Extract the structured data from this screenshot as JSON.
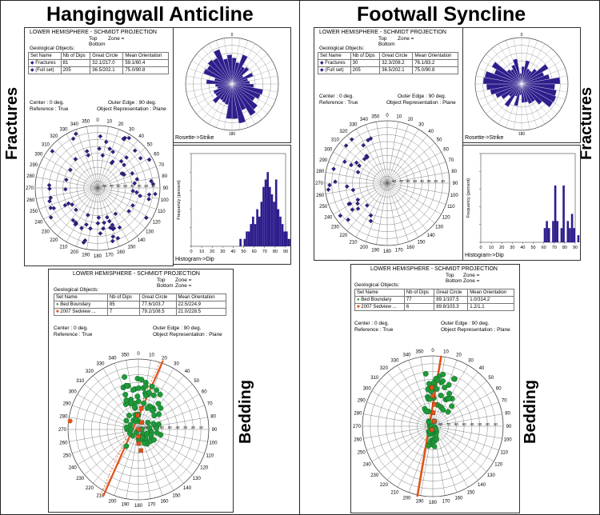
{
  "titles": {
    "left": "Hangingwall Anticline",
    "right": "Footwall Syncline"
  },
  "side_labels": {
    "fractures": "Fractures",
    "bedding": "Bedding"
  },
  "projection_header": {
    "title": "LOWER HEMISPHERE - SCHMIDT PROJECTION",
    "top_label": "Top",
    "bottom_label": "Bottom",
    "dip_label": "Dip",
    "zone_label": "Zone =",
    "geo_objects": "Geological Objects:",
    "col_set": "Set Name",
    "col_nb": "Nb of Dips",
    "col_gc": "Great Circle",
    "col_gc2": "(Dip & Azimuth)",
    "col_mo": "Mean Orientation",
    "col_mo2": "(Dip & Azimuth)",
    "center": "Center",
    "center_val": ": 0 deg.",
    "outer": "Outer Edge",
    "outer_val": ": 90 deg.",
    "reference": "Reference : True",
    "object_rep": "Object Representation : Plane"
  },
  "left_fracture_table": [
    {
      "name": "Fractures",
      "nb": "81",
      "gc": "32.1/217.0",
      "mo": "59.1/60.4"
    },
    {
      "name": "(Full set)",
      "nb": "205",
      "gc": "36.5/202.1",
      "mo": "75.0/90.8"
    }
  ],
  "right_fracture_table": [
    {
      "name": "Fractures",
      "nb": "30",
      "gc": "32.3/208.2",
      "mo": "76.1/83.2"
    },
    {
      "name": "(Full set)",
      "nb": "205",
      "gc": "36.5/202.1",
      "mo": "75.0/90.8"
    }
  ],
  "left_bedding_table": [
    {
      "name": "Bed Boundary",
      "nb": "85",
      "gc": "77.6/103.7",
      "mo": "22.5/224.9"
    },
    {
      "name": "2007 Sedview ...",
      "nb": "7",
      "gc": "79.2/108.5",
      "mo": "21.0/228.5"
    }
  ],
  "right_bedding_table": [
    {
      "name": "Bed Boundary",
      "nb": "77",
      "gc": "89.1/107.5",
      "mo": "1.0/314.2"
    },
    {
      "name": "2007 Sedview ...",
      "nb": "6",
      "gc": "89.8/103.3",
      "mo": "1.2/1.1"
    }
  ],
  "rosette_caption": "Rosette->Strike",
  "histogram_caption": "Histogram->Dip",
  "histogram_xlabel": "Dip (degrees)",
  "histogram_ylabel": "Frequency (percent)",
  "compass_labels": [
    "0",
    "10",
    "20",
    "30",
    "40",
    "50",
    "60",
    "70",
    "80",
    "90",
    "100",
    "110",
    "120",
    "130",
    "140",
    "150",
    "160",
    "170",
    "180",
    "190",
    "200",
    "210",
    "220",
    "230",
    "240",
    "250",
    "260",
    "270",
    "280",
    "290",
    "300",
    "310",
    "320",
    "330",
    "340",
    "350"
  ],
  "hist_x_ticks": [
    "0",
    "10",
    "20",
    "30",
    "40",
    "50",
    "60",
    "70",
    "80",
    "90"
  ],
  "colors": {
    "purple": "#2d1e8c",
    "green": "#1f9a3a",
    "orange": "#e2531b"
  },
  "chart_data": [
    {
      "type": "histogram",
      "name": "left-dip",
      "bins_start": 30,
      "bin_width": 2,
      "values": [
        0,
        0,
        0,
        0,
        0,
        0,
        0,
        0,
        1,
        0,
        1,
        2,
        2,
        3,
        4,
        3,
        5,
        4,
        6,
        8,
        9,
        10,
        8,
        7,
        6,
        9,
        5,
        4,
        3,
        2,
        2,
        1,
        1,
        0,
        0
      ]
    },
    {
      "type": "histogram",
      "name": "right-dip",
      "bins_start": 30,
      "bin_width": 2,
      "values": [
        0,
        0,
        0,
        0,
        0,
        0,
        0,
        0,
        0,
        0,
        0,
        0,
        0,
        0,
        0,
        2,
        3,
        2,
        0,
        3,
        8,
        3,
        0,
        2,
        8,
        0,
        3,
        2,
        4,
        2,
        0,
        1,
        0,
        0,
        0
      ]
    }
  ]
}
